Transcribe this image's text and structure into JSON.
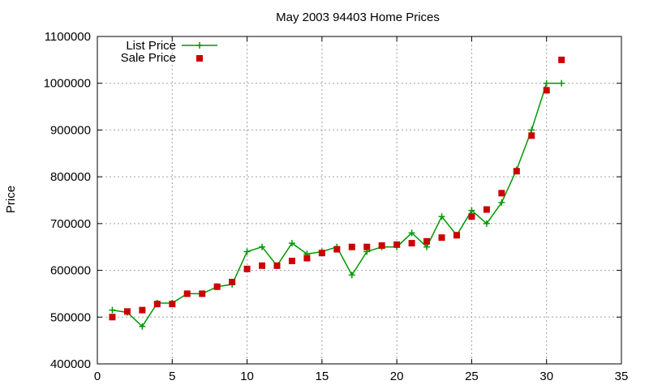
{
  "chart_data": {
    "type": "line",
    "title": "May 2003 94403 Home Prices",
    "xlabel": "",
    "ylabel": "Price",
    "xlim": [
      0,
      35
    ],
    "ylim": [
      400000,
      1100000
    ],
    "x_ticks": [
      "0",
      "5",
      "10",
      "15",
      "20",
      "25",
      "30",
      "35"
    ],
    "y_ticks": [
      "400000",
      "500000",
      "600000",
      "700000",
      "800000",
      "900000",
      "1000000",
      "1100000"
    ],
    "grid": true,
    "legend_position": "top-left",
    "series": [
      {
        "name": "List Price",
        "style": "lines+points",
        "marker": "plus",
        "color": "#009900",
        "x": [
          1,
          2,
          3,
          4,
          5,
          6,
          7,
          8,
          9,
          10,
          11,
          12,
          13,
          14,
          15,
          16,
          17,
          18,
          19,
          20,
          21,
          22,
          23,
          24,
          25,
          26,
          27,
          28,
          29,
          30,
          31
        ],
        "y": [
          515000,
          510000,
          480000,
          530000,
          530000,
          550000,
          550000,
          565000,
          570000,
          640000,
          650000,
          610000,
          658000,
          635000,
          640000,
          650000,
          590000,
          640000,
          650000,
          650000,
          680000,
          650000,
          715000,
          675000,
          728000,
          700000,
          745000,
          815000,
          900000,
          1000000,
          1000000
        ]
      },
      {
        "name": "Sale Price",
        "style": "points",
        "marker": "square",
        "color": "#cc0000",
        "x": [
          1,
          2,
          3,
          4,
          5,
          6,
          7,
          8,
          9,
          10,
          11,
          12,
          13,
          14,
          15,
          16,
          17,
          18,
          19,
          20,
          21,
          22,
          23,
          24,
          25,
          26,
          27,
          28,
          29,
          30,
          31
        ],
        "y": [
          500000,
          512000,
          515000,
          528000,
          528000,
          550000,
          550000,
          565000,
          575000,
          603000,
          610000,
          610000,
          620000,
          626000,
          637000,
          645000,
          650000,
          650000,
          653000,
          655000,
          658000,
          662000,
          670000,
          675000,
          715000,
          730000,
          765000,
          812000,
          888000,
          985000,
          1050000
        ]
      }
    ]
  }
}
